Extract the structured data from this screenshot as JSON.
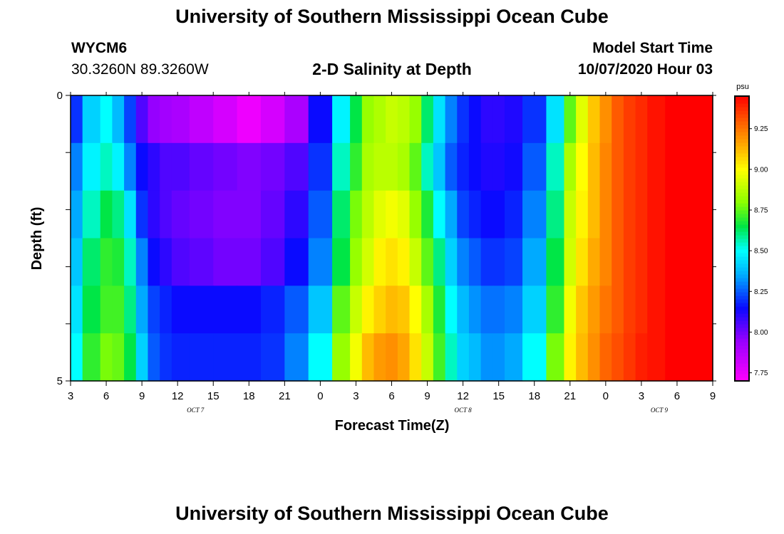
{
  "header": {
    "title": "University of Southern Mississippi Ocean Cube",
    "station": "WYCM6",
    "coords": "30.3260N 89.3260W",
    "chart_title": "2-D Salinity at Depth",
    "model_start_label": "Model Start Time",
    "model_start_value": "10/07/2020 Hour 03"
  },
  "footer": {
    "title": "University of Southern Mississippi Ocean Cube"
  },
  "chart_data": {
    "type": "heatmap",
    "title": "2-D Salinity at Depth",
    "xlabel": "Forecast Time(Z)",
    "ylabel": "Depth (ft)",
    "colorbar_label": "psu",
    "x_tick_labels": [
      "3",
      "6",
      "9",
      "12",
      "15",
      "18",
      "21",
      "0",
      "3",
      "6",
      "9",
      "12",
      "15",
      "18",
      "21",
      "0",
      "3",
      "6",
      "9"
    ],
    "date_labels": [
      {
        "label": "OCT 7",
        "at_tick": 3.5
      },
      {
        "label": "OCT 8",
        "at_tick": 11
      },
      {
        "label": "OCT 9",
        "at_tick": 16.5
      }
    ],
    "y_tick_labels": [
      "0",
      "5"
    ],
    "depth_range": [
      0,
      5
    ],
    "x_hours_range": [
      3,
      57
    ],
    "color_range": [
      7.7,
      9.45
    ],
    "colorbar_ticks": [
      "9.25",
      "9.00",
      "8.75",
      "8.50",
      "8.25",
      "8.00",
      "7.75"
    ],
    "colorbar_tick_values": [
      9.25,
      9.0,
      8.75,
      8.5,
      8.25,
      8.0,
      7.75
    ],
    "depth_layers": [
      0,
      1,
      2,
      3,
      4,
      5
    ],
    "time_hours": [
      3,
      5,
      6,
      7,
      8,
      9,
      10,
      11,
      12,
      14,
      16,
      18,
      20,
      22,
      24,
      26,
      27,
      28,
      29,
      30,
      31,
      32,
      33,
      34,
      35,
      36,
      37,
      38,
      39,
      40,
      42,
      44,
      45,
      46,
      47,
      48,
      49,
      50,
      51,
      52,
      54,
      56,
      57
    ],
    "layers": [
      {
        "depth": "0-1",
        "values": [
          8.2,
          8.42,
          8.5,
          8.38,
          8.22,
          8.05,
          7.95,
          7.92,
          7.9,
          7.85,
          7.8,
          7.74,
          7.8,
          7.9,
          8.15,
          8.48,
          8.65,
          8.82,
          8.86,
          8.9,
          8.88,
          8.82,
          8.62,
          8.45,
          8.3,
          8.2,
          8.15,
          8.1,
          8.1,
          8.12,
          8.2,
          8.45,
          8.75,
          8.95,
          9.1,
          9.2,
          9.3,
          9.35,
          9.38,
          9.42,
          9.45,
          9.45,
          9.45
        ]
      },
      {
        "depth": "1-2",
        "values": [
          8.3,
          8.48,
          8.55,
          8.48,
          8.3,
          8.15,
          8.1,
          8.05,
          8.05,
          8.02,
          8.0,
          7.98,
          8.0,
          8.05,
          8.2,
          8.55,
          8.7,
          8.85,
          8.88,
          8.88,
          8.85,
          8.75,
          8.55,
          8.4,
          8.25,
          8.18,
          8.15,
          8.12,
          8.12,
          8.14,
          8.25,
          8.55,
          8.85,
          9.0,
          9.12,
          9.22,
          9.3,
          9.35,
          9.38,
          9.42,
          9.45,
          9.45,
          9.45
        ]
      },
      {
        "depth": "2-3",
        "values": [
          8.35,
          8.55,
          8.65,
          8.6,
          8.45,
          8.2,
          8.1,
          8.05,
          8.02,
          8.0,
          7.98,
          7.98,
          8.02,
          8.1,
          8.25,
          8.62,
          8.78,
          8.88,
          8.95,
          8.98,
          8.95,
          8.82,
          8.68,
          8.5,
          8.35,
          8.22,
          8.18,
          8.15,
          8.15,
          8.18,
          8.3,
          8.6,
          8.9,
          9.02,
          9.12,
          9.22,
          9.3,
          9.35,
          9.38,
          9.42,
          9.45,
          9.45,
          9.45
        ]
      },
      {
        "depth": "3-4",
        "values": [
          8.4,
          8.62,
          8.7,
          8.68,
          8.55,
          8.3,
          8.15,
          8.1,
          8.05,
          8.03,
          8.0,
          8.0,
          8.05,
          8.15,
          8.3,
          8.65,
          8.82,
          8.92,
          9.02,
          9.05,
          9.02,
          8.9,
          8.75,
          8.6,
          8.42,
          8.3,
          8.25,
          8.2,
          8.2,
          8.22,
          8.35,
          8.65,
          8.92,
          9.05,
          9.15,
          9.22,
          9.3,
          9.35,
          9.38,
          9.42,
          9.45,
          9.45,
          9.45
        ]
      },
      {
        "depth": "4-5",
        "values": [
          8.45,
          8.65,
          8.72,
          8.72,
          8.6,
          8.35,
          8.22,
          8.18,
          8.15,
          8.15,
          8.15,
          8.15,
          8.18,
          8.25,
          8.4,
          8.75,
          8.9,
          9.02,
          9.08,
          9.12,
          9.1,
          9.0,
          8.85,
          8.68,
          8.5,
          8.38,
          8.32,
          8.28,
          8.28,
          8.3,
          8.42,
          8.7,
          8.98,
          9.1,
          9.18,
          9.25,
          9.3,
          9.35,
          9.38,
          9.42,
          9.45,
          9.45,
          9.45
        ]
      },
      {
        "depth": "5",
        "values": [
          8.5,
          8.7,
          8.78,
          8.76,
          8.65,
          8.42,
          8.25,
          8.2,
          8.18,
          8.18,
          8.18,
          8.18,
          8.2,
          8.3,
          8.5,
          8.82,
          8.98,
          9.12,
          9.18,
          9.2,
          9.16,
          9.05,
          8.9,
          8.72,
          8.55,
          8.42,
          8.38,
          8.32,
          8.32,
          8.35,
          8.5,
          8.78,
          9.02,
          9.12,
          9.2,
          9.28,
          9.32,
          9.36,
          9.4,
          9.42,
          9.45,
          9.45,
          9.45
        ]
      }
    ]
  }
}
